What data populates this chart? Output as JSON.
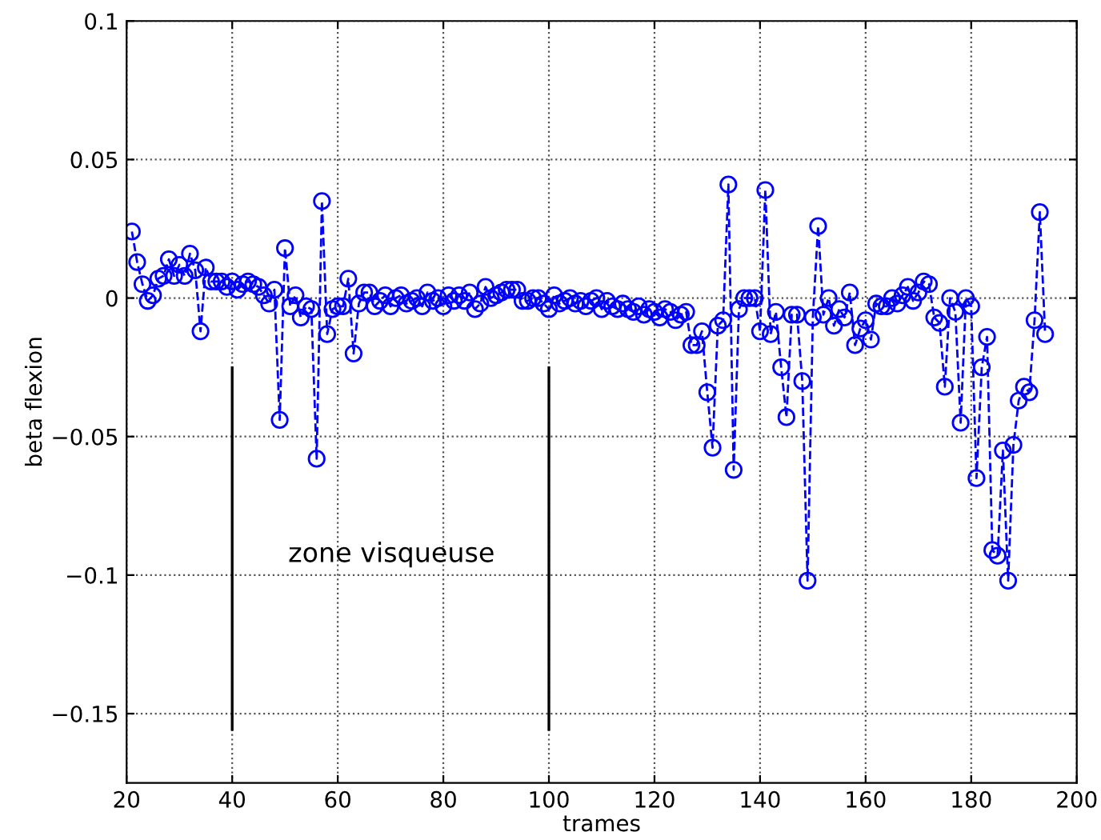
{
  "chart_data": {
    "type": "line",
    "xlabel": "trames",
    "ylabel": "beta flexion",
    "x": [
      21,
      22,
      23,
      24,
      25,
      26,
      27,
      28,
      29,
      30,
      31,
      32,
      33,
      34,
      35,
      36,
      37,
      38,
      39,
      40,
      41,
      42,
      43,
      44,
      45,
      46,
      47,
      48,
      49,
      50,
      51,
      52,
      53,
      54,
      55,
      56,
      57,
      58,
      59,
      60,
      61,
      62,
      63,
      64,
      65,
      66,
      67,
      68,
      69,
      70,
      71,
      72,
      73,
      74,
      75,
      76,
      77,
      78,
      79,
      80,
      81,
      82,
      83,
      84,
      85,
      86,
      87,
      88,
      89,
      90,
      91,
      92,
      93,
      94,
      95,
      96,
      97,
      98,
      99,
      100,
      101,
      102,
      103,
      104,
      105,
      106,
      107,
      108,
      109,
      110,
      111,
      112,
      113,
      114,
      115,
      116,
      117,
      118,
      119,
      120,
      121,
      122,
      123,
      124,
      125,
      126,
      127,
      128,
      129,
      130,
      131,
      132,
      133,
      134,
      135,
      136,
      137,
      138,
      139,
      140,
      141,
      142,
      143,
      144,
      145,
      146,
      147,
      148,
      149,
      150,
      151,
      152,
      153,
      154,
      155,
      156,
      157,
      158,
      159,
      160,
      161,
      162,
      163,
      164,
      165,
      166,
      167,
      168,
      169,
      170,
      171,
      172,
      173,
      174,
      175,
      176,
      177,
      178,
      179,
      180,
      181,
      182,
      183,
      184,
      185,
      186,
      187,
      188,
      189,
      190,
      191,
      192,
      193,
      194
    ],
    "series": [
      {
        "color": "#0000ff",
        "values": [
          0.024,
          0.013,
          0.005,
          -0.001,
          0.001,
          0.007,
          0.008,
          0.014,
          0.008,
          0.012,
          0.008,
          0.016,
          0.01,
          -0.012,
          0.011,
          0.006,
          0.006,
          0.006,
          0.004,
          0.006,
          0.003,
          0.005,
          0.006,
          0.005,
          0.004,
          0.001,
          -0.002,
          0.003,
          -0.044,
          0.018,
          -0.003,
          0.001,
          -0.007,
          -0.003,
          -0.004,
          -0.058,
          0.035,
          -0.013,
          -0.004,
          -0.003,
          -0.003,
          0.007,
          -0.02,
          -0.002,
          0.002,
          0.002,
          -0.003,
          -0.001,
          0.001,
          -0.003,
          0.0,
          0.001,
          -0.002,
          -0.001,
          0.0,
          -0.003,
          0.002,
          -0.001,
          0.0,
          -0.003,
          0.001,
          -0.001,
          0.001,
          -0.001,
          0.002,
          -0.004,
          -0.002,
          0.004,
          0.0,
          0.001,
          0.002,
          0.003,
          0.003,
          0.003,
          -0.001,
          -0.001,
          0.0,
          0.0,
          -0.002,
          -0.004,
          0.001,
          -0.002,
          -0.001,
          0.0,
          -0.002,
          -0.001,
          -0.003,
          -0.001,
          0.0,
          -0.004,
          -0.001,
          -0.003,
          -0.004,
          -0.002,
          -0.004,
          -0.005,
          -0.003,
          -0.006,
          -0.004,
          -0.005,
          -0.007,
          -0.004,
          -0.005,
          -0.008,
          -0.006,
          -0.005,
          -0.017,
          -0.017,
          -0.012,
          -0.034,
          -0.054,
          -0.01,
          -0.008,
          0.041,
          -0.062,
          -0.004,
          0.0,
          0.0,
          0.0,
          -0.012,
          0.039,
          -0.013,
          -0.005,
          -0.025,
          -0.043,
          -0.006,
          -0.006,
          -0.03,
          -0.102,
          -0.007,
          0.026,
          -0.006,
          0.0,
          -0.01,
          -0.004,
          -0.007,
          0.002,
          -0.017,
          -0.011,
          -0.008,
          -0.015,
          -0.002,
          -0.003,
          -0.003,
          0.0,
          -0.002,
          0.001,
          0.004,
          -0.001,
          0.002,
          0.006,
          0.005,
          -0.007,
          -0.009,
          -0.032,
          0.0,
          -0.005,
          -0.045,
          0.0,
          -0.003,
          -0.065,
          -0.025,
          -0.014,
          -0.091,
          -0.093,
          -0.055,
          -0.102,
          -0.053,
          -0.037,
          -0.032,
          -0.034,
          -0.008,
          0.031,
          -0.013
        ]
      }
    ],
    "xlim": [
      20,
      200
    ],
    "xticks": [
      20,
      40,
      60,
      80,
      100,
      120,
      140,
      160,
      180,
      200
    ],
    "ylim": [
      -0.175,
      0.1
    ],
    "yticks": [
      {
        "value": -0.15,
        "label": "−0.15"
      },
      {
        "value": -0.1,
        "label": "−0.1"
      },
      {
        "value": -0.05,
        "label": "−0.05"
      },
      0,
      0.05,
      0.1
    ],
    "ref_lines": [
      {
        "axis": "x",
        "value": 40,
        "color": "#000000",
        "line_style": "solid"
      },
      {
        "axis": "x",
        "value": 100,
        "color": "#000000",
        "line_style": "solid"
      }
    ],
    "annotations": [
      "zone visqueuse"
    ],
    "grid": true,
    "marker": "circle",
    "line_style": "dashed"
  }
}
